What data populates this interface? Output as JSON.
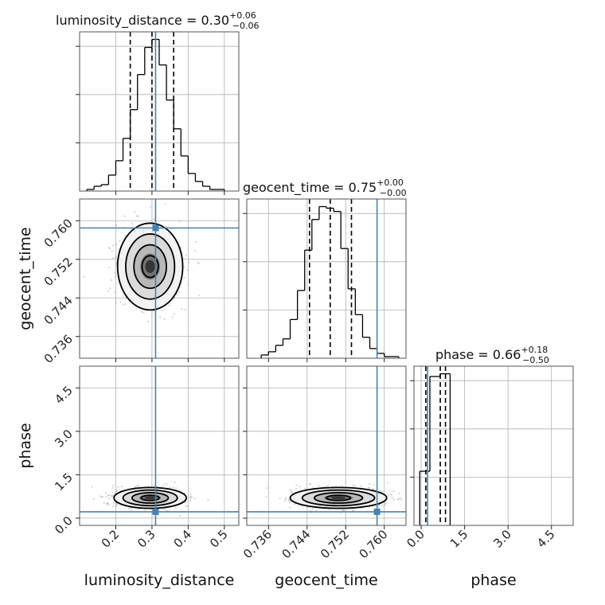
{
  "chart_data": {
    "type": "corner",
    "truth_color": "#4682b4",
    "parameters": [
      {
        "name": "luminosity_distance",
        "axis_label": "luminosity_distance",
        "range": [
          0.1,
          0.54
        ],
        "ticks": [
          0.2,
          0.3,
          0.4,
          0.5
        ],
        "tick_labels": [
          "0.2",
          "0.3",
          "0.4",
          "0.5"
        ],
        "truth": 0.31,
        "quantiles": [
          0.24,
          0.3,
          0.36
        ],
        "title": {
          "main": "luminosity_distance = 0.30",
          "sup": "+0.06",
          "sub": "−0.06"
        }
      },
      {
        "name": "geocent_time",
        "axis_label": "geocent_time",
        "range": [
          0.7315,
          0.7645
        ],
        "ticks": [
          0.736,
          0.744,
          0.752,
          0.76
        ],
        "tick_labels": [
          "0.736",
          "0.744",
          "0.752",
          "0.760"
        ],
        "truth": 0.7585,
        "quantiles": [
          0.7445,
          0.7488,
          0.7532
        ],
        "title": {
          "main": "geocent_time = 0.75",
          "sup": "+0.00",
          "sub": "−0.00"
        }
      },
      {
        "name": "phase",
        "axis_label": "phase",
        "range": [
          -0.25,
          5.25
        ],
        "ticks": [
          0.0,
          1.5,
          3.0,
          4.5
        ],
        "tick_labels": [
          "0.0",
          "1.5",
          "3.0",
          "4.5"
        ],
        "truth": 0.22,
        "quantiles": [
          0.16,
          0.66,
          0.84
        ],
        "title": {
          "main": "phase = 0.66",
          "sup": "+0.18",
          "sub": "−0.50"
        }
      }
    ],
    "histograms": {
      "luminosity_distance": {
        "edges": [
          0.12,
          0.14,
          0.16,
          0.18,
          0.2,
          0.22,
          0.24,
          0.26,
          0.28,
          0.3,
          0.32,
          0.34,
          0.36,
          0.38,
          0.4,
          0.42,
          0.44,
          0.46,
          0.48,
          0.5
        ],
        "counts": [
          1,
          3,
          4,
          10,
          19,
          33,
          51,
          73,
          90,
          95,
          79,
          57,
          39,
          22,
          11,
          6,
          3,
          1,
          1
        ]
      },
      "geocent_time": {
        "edges": [
          0.7345,
          0.736,
          0.7375,
          0.739,
          0.7405,
          0.742,
          0.7435,
          0.745,
          0.7465,
          0.748,
          0.7495,
          0.751,
          0.7525,
          0.754,
          0.7555,
          0.757,
          0.7585,
          0.76,
          0.7615,
          0.763
        ],
        "counts": [
          2,
          4,
          8,
          12,
          24,
          42,
          67,
          86,
          94,
          93,
          91,
          68,
          43,
          27,
          13,
          6,
          3,
          1,
          1
        ]
      },
      "phase": {
        "edges": [
          -0.05,
          0.3,
          0.65,
          1.0
        ],
        "counts": [
          20,
          55,
          56
        ]
      }
    },
    "contours_2d": {
      "geocent_time_vs_luminosity_distance": {
        "center": [
          0.295,
          0.7505
        ],
        "levels_sigma": [
          0.5,
          1.0,
          1.5,
          2.0
        ],
        "sigma": [
          0.045,
          0.0045
        ]
      },
      "phase_vs_luminosity_distance": {
        "center": [
          0.295,
          0.7
        ],
        "levels_sigma": [
          0.5,
          1.0,
          1.5,
          2.0
        ],
        "sigma": [
          0.05,
          0.18
        ]
      },
      "phase_vs_geocent_time": {
        "center": [
          0.7505,
          0.7
        ],
        "levels_sigma": [
          0.5,
          1.0,
          1.5,
          2.0
        ],
        "sigma": [
          0.005,
          0.18
        ]
      }
    },
    "grid": true
  }
}
